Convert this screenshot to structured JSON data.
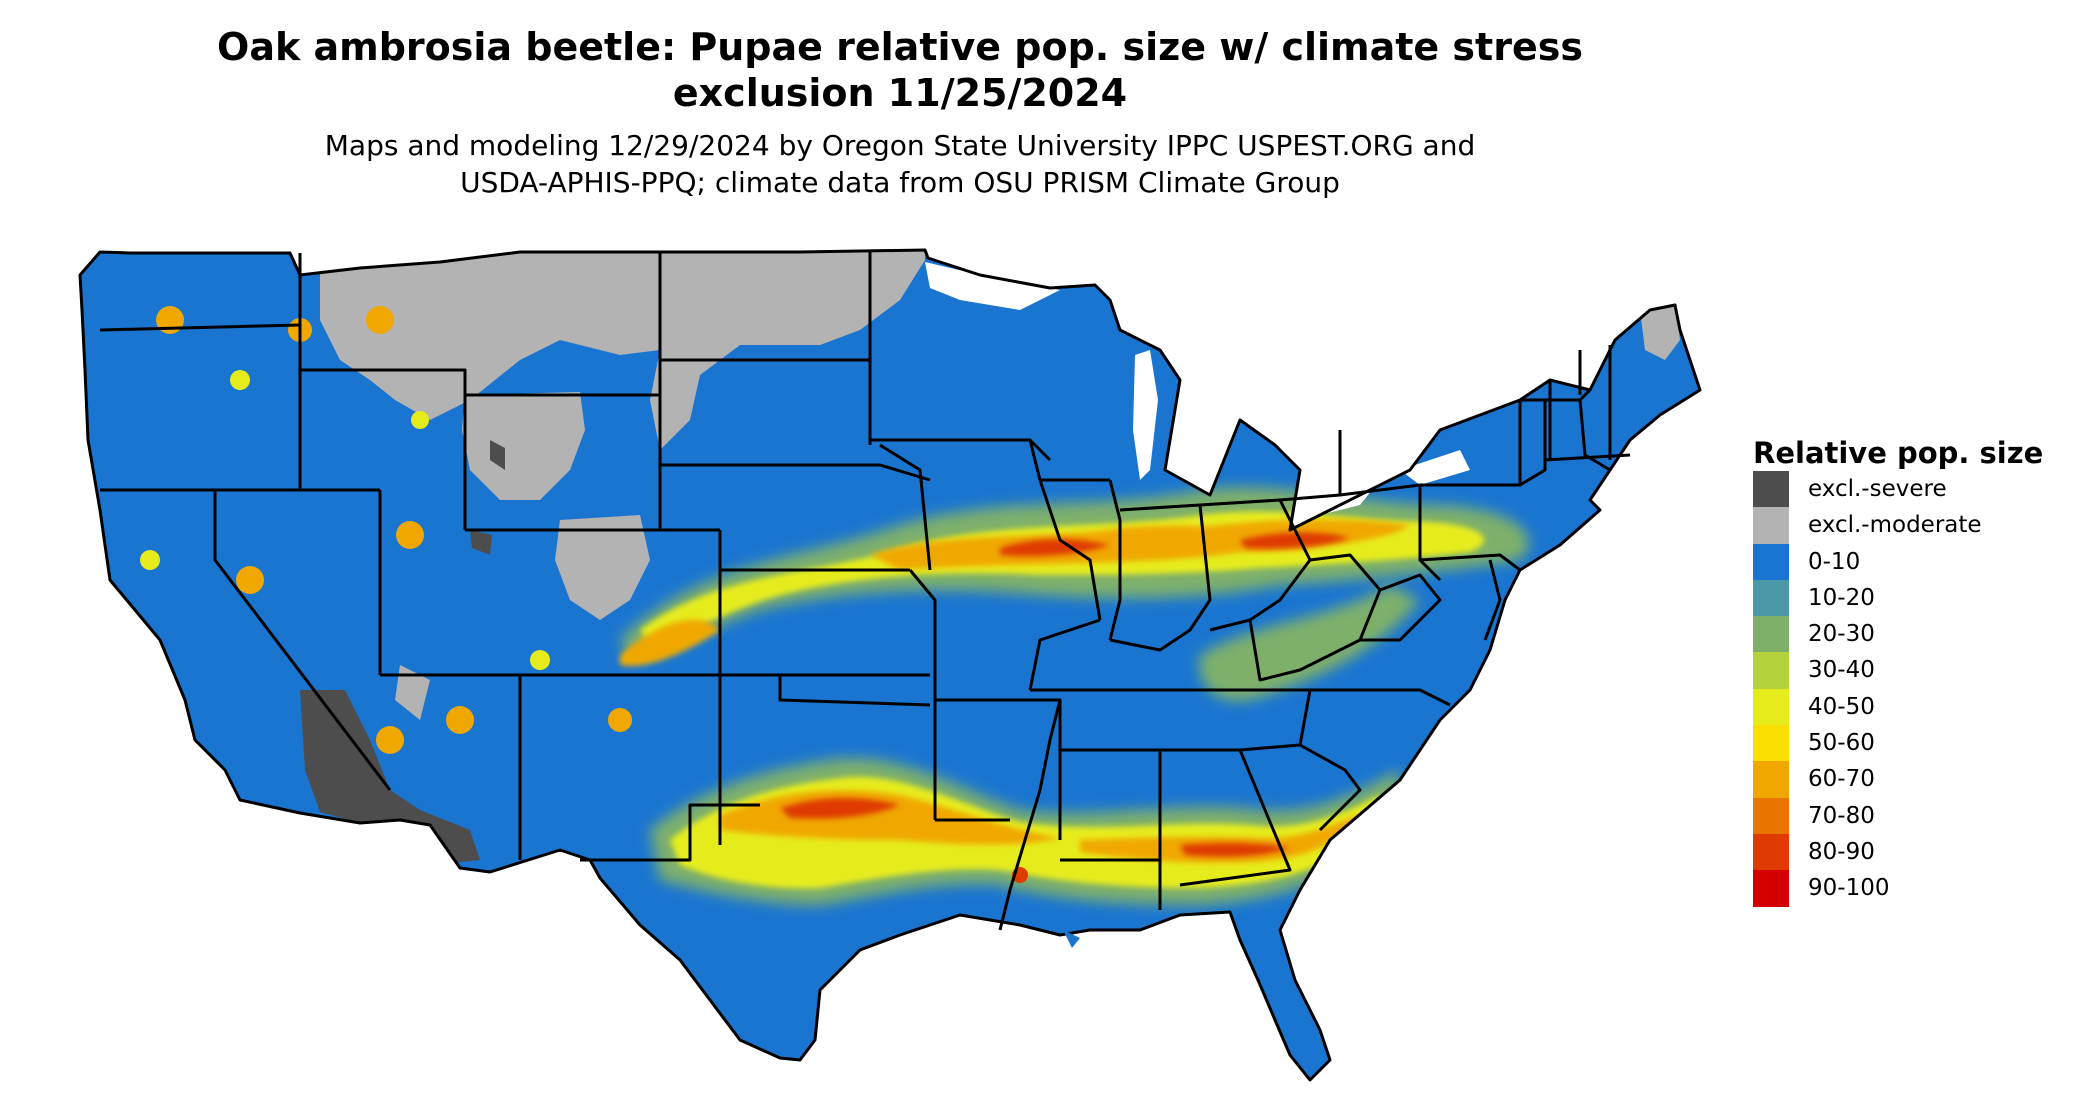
{
  "title": {
    "line1": "Oak ambrosia beetle: Pupae relative pop. size w/ climate stress",
    "line2": "exclusion 11/25/2024"
  },
  "subtitle": {
    "line1": "Maps and modeling 12/29/2024 by Oregon State University IPPC USPEST.ORG and",
    "line2": "USDA-APHIS-PPQ; climate data from OSU PRISM Climate Group"
  },
  "legend": {
    "title": "Relative pop. size",
    "items": [
      {
        "label": "excl.-severe",
        "color": "#4d4d4d"
      },
      {
        "label": "excl.-moderate",
        "color": "#b3b3b3"
      },
      {
        "label": "0-10",
        "color": "#1a75d1"
      },
      {
        "label": "10-20",
        "color": "#4a97a8"
      },
      {
        "label": "20-30",
        "color": "#7fb06a"
      },
      {
        "label": "30-40",
        "color": "#b3d23c"
      },
      {
        "label": "40-50",
        "color": "#e6ec1a"
      },
      {
        "label": "50-60",
        "color": "#f8df00"
      },
      {
        "label": "60-70",
        "color": "#f0a800"
      },
      {
        "label": "70-80",
        "color": "#e87500"
      },
      {
        "label": "80-90",
        "color": "#df3a00"
      },
      {
        "label": "90-100",
        "color": "#d40000"
      }
    ]
  },
  "map": {
    "colors": {
      "base": "#1a75d1",
      "border": "#000000",
      "excl_severe": "#4d4d4d",
      "excl_moderate": "#b3b3b3",
      "band_outer": "#7fb06a",
      "band_mid": "#e6ec1a",
      "band_warm": "#f0a800",
      "band_hot": "#e87500",
      "band_core": "#df3a00"
    }
  }
}
